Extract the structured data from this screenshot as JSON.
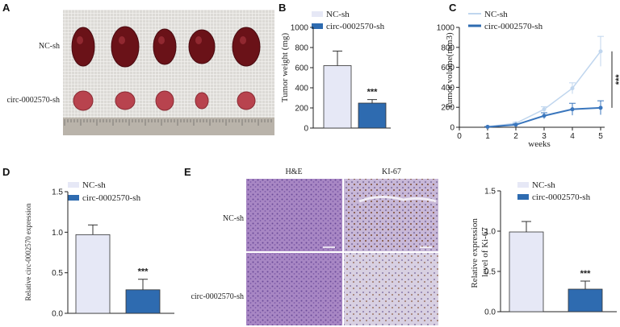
{
  "colors": {
    "nc": "#e6e8f6",
    "circ": "#2e6bb0",
    "nc_line": "#c0d6ee",
    "circ_line": "#3a76bd"
  },
  "panels": {
    "A": {
      "letter": "A",
      "rows": [
        "NC-sh",
        "circ-0002570-sh"
      ]
    },
    "B": {
      "letter": "B"
    },
    "C": {
      "letter": "C"
    },
    "D": {
      "letter": "D"
    },
    "E": {
      "letter": "E",
      "columns": [
        "H&E",
        "KI-67"
      ],
      "rows": [
        "NC-sh",
        "circ-0002570-sh"
      ]
    }
  },
  "chart_data": [
    {
      "id": "B",
      "type": "bar",
      "ylabel": "Tumor weight (mg)",
      "ylim": [
        0,
        1000
      ],
      "yticks": [
        0,
        200,
        400,
        600,
        800,
        1000
      ],
      "series": [
        {
          "name": "NC-sh",
          "value": 620,
          "error": 145
        },
        {
          "name": "circ-0002570-sh",
          "value": 248,
          "error": 35
        }
      ],
      "annotations": [
        "***"
      ]
    },
    {
      "id": "C",
      "type": "line",
      "xlabel": "weeks",
      "ylabel": "Tumor volume(mm3)",
      "xlim": [
        0,
        5
      ],
      "xticks": [
        0,
        1,
        2,
        3,
        4,
        5
      ],
      "ylim": [
        0,
        1000
      ],
      "yticks": [
        0,
        200,
        400,
        600,
        800,
        1000
      ],
      "x": [
        1,
        2,
        3,
        4,
        5
      ],
      "series": [
        {
          "name": "NC-sh",
          "values": [
            5,
            40,
            180,
            390,
            760
          ],
          "errors": [
            3,
            10,
            25,
            55,
            150
          ]
        },
        {
          "name": "circ-0002570-sh",
          "values": [
            4,
            25,
            115,
            180,
            195
          ],
          "errors": [
            3,
            8,
            30,
            60,
            70
          ]
        }
      ],
      "annotations": [
        "***"
      ]
    },
    {
      "id": "D",
      "type": "bar",
      "ylabel": "Relative circ-0002570 expression",
      "ylim": [
        0,
        1.5
      ],
      "yticks": [
        "0.0",
        "0.5",
        "1.0",
        "1.5"
      ],
      "series": [
        {
          "name": "NC-sh",
          "value": 0.97,
          "error": 0.12
        },
        {
          "name": "circ-0002570-sh",
          "value": 0.29,
          "error": 0.13
        }
      ],
      "annotations": [
        "***"
      ]
    },
    {
      "id": "E",
      "type": "bar",
      "ylabel": "Relative expression level of Ki-67",
      "ylim": [
        0,
        1.5
      ],
      "yticks": [
        "0.0",
        "0.5",
        "1.0",
        "1.5"
      ],
      "series": [
        {
          "name": "NC-sh",
          "value": 0.99,
          "error": 0.13
        },
        {
          "name": "circ-0002570-sh",
          "value": 0.28,
          "error": 0.1
        }
      ],
      "annotations": [
        "***"
      ]
    }
  ]
}
